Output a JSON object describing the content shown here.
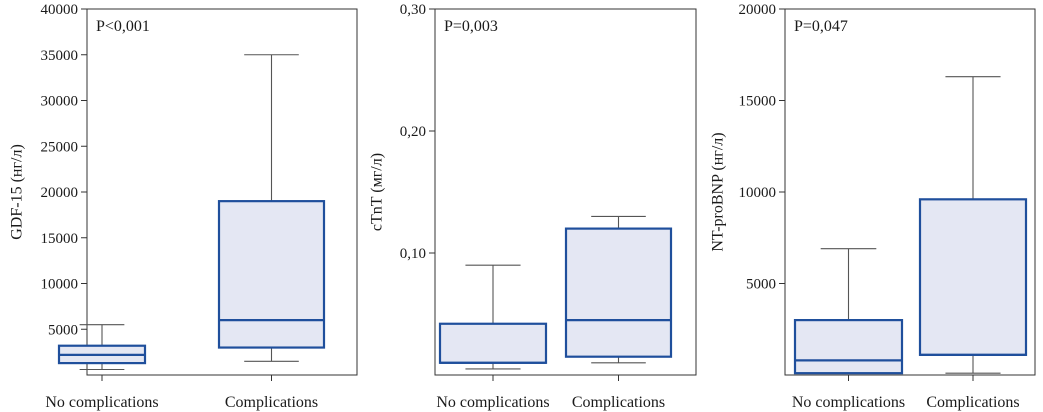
{
  "colors": {
    "box_fill": "#e4e7f3",
    "box_stroke": "#1f4f9c",
    "whisker": "#555555",
    "frame": "#333333"
  },
  "chart_data": [
    {
      "type": "box",
      "ylabel": "GDF-15 (нг/л)",
      "annotation": "P<0,001",
      "ylim": [
        0,
        40000
      ],
      "yticks": [
        5000,
        10000,
        15000,
        20000,
        25000,
        30000,
        35000,
        40000
      ],
      "ytick_labels": [
        "5000",
        "10000",
        "15000",
        "20000",
        "25000",
        "30000",
        "35000",
        "40000"
      ],
      "categories": [
        "No complications",
        "Complications"
      ],
      "boxes": [
        {
          "category": "No complications",
          "whisker_low": 600,
          "q1": 1300,
          "median": 2200,
          "q3": 3200,
          "whisker_high": 5500
        },
        {
          "category": "Complications",
          "whisker_low": 1500,
          "q1": 3000,
          "median": 6000,
          "q3": 19000,
          "whisker_high": 35000
        }
      ]
    },
    {
      "type": "box",
      "ylabel": "cTnT (мг/л)",
      "annotation": "P=0,003",
      "ylim": [
        0,
        0.3
      ],
      "yticks": [
        0.1,
        0.2,
        0.3
      ],
      "ytick_labels": [
        "0,10",
        "0,20",
        "0,30"
      ],
      "categories": [
        "No complications",
        "Complications"
      ],
      "boxes": [
        {
          "category": "No complications",
          "whisker_low": 0.005,
          "q1": 0.01,
          "median": 0.01,
          "q3": 0.042,
          "whisker_high": 0.09
        },
        {
          "category": "Complications",
          "whisker_low": 0.01,
          "q1": 0.015,
          "median": 0.045,
          "q3": 0.12,
          "whisker_high": 0.13
        }
      ]
    },
    {
      "type": "box",
      "ylabel": "NT-proBNP (нг/л)",
      "annotation": "P=0,047",
      "ylim": [
        0,
        20000
      ],
      "yticks": [
        5000,
        10000,
        15000,
        20000
      ],
      "ytick_labels": [
        "5000",
        "10000",
        "15000",
        "20000"
      ],
      "categories": [
        "No complications",
        "Complications"
      ],
      "boxes": [
        {
          "category": "No complications",
          "whisker_low": 100,
          "q1": 100,
          "median": 800,
          "q3": 3000,
          "whisker_high": 6900
        },
        {
          "category": "Complications",
          "whisker_low": 100,
          "q1": 1100,
          "median": 1100,
          "q3": 9600,
          "whisker_high": 16300
        }
      ]
    }
  ]
}
